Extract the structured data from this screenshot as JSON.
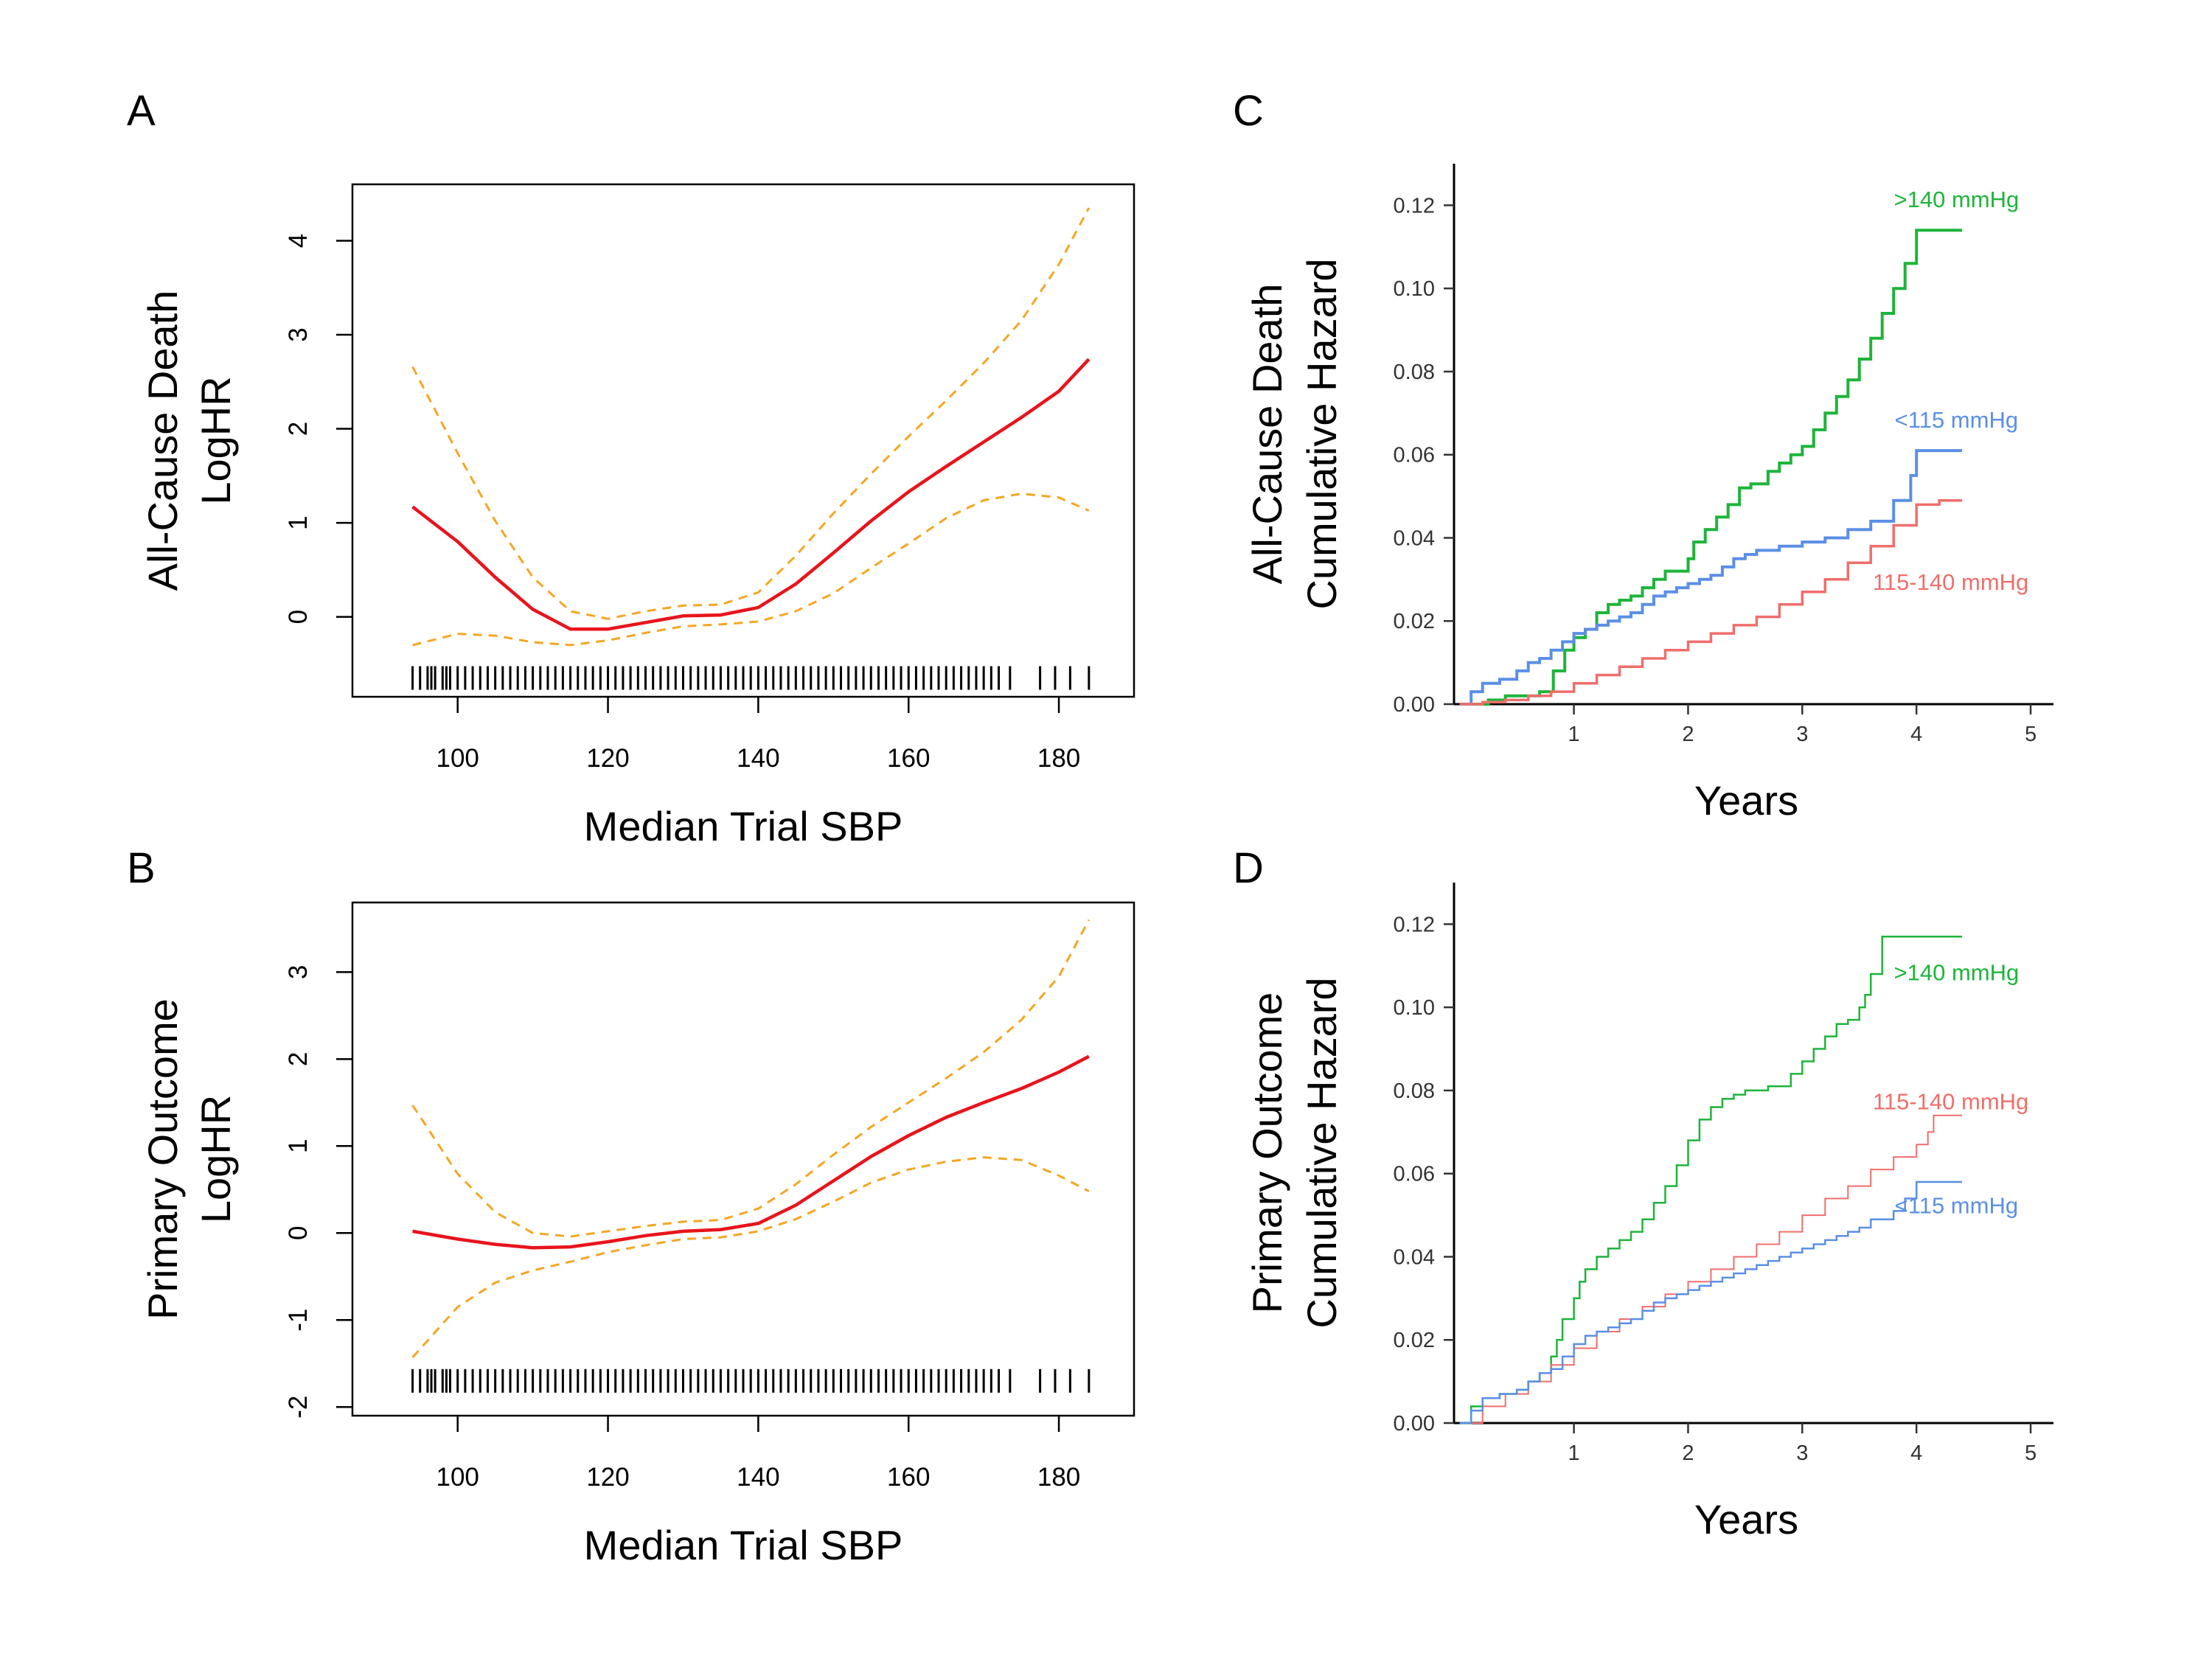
{
  "colors": {
    "fit": "#e8141c",
    "ci": "#f5a623",
    "green": "#1db43a",
    "blue": "#5b8fe6",
    "salmon": "#ef6e6b",
    "rug": "#000000"
  },
  "chart_data": [
    {
      "panel": "A",
      "type": "line",
      "xlabel": "Median Trial SBP",
      "ylabel_lines": [
        "All-Cause Death",
        "LogHR"
      ],
      "xlim": [
        86,
        190
      ],
      "ylim": [
        -0.85,
        4.6
      ],
      "xticks": [
        100,
        120,
        140,
        160,
        180
      ],
      "xtick_labels": [
        "100",
        "120",
        "140",
        "160",
        "180"
      ],
      "yticks": [
        0,
        1,
        2,
        3,
        4
      ],
      "ytick_labels": [
        "0",
        "1",
        "2",
        "3",
        "4"
      ],
      "rug_y": -0.65,
      "series": [
        {
          "role": "fit",
          "x": [
            94,
            100,
            105,
            110,
            115,
            120,
            125,
            130,
            135,
            140,
            145,
            150,
            155,
            160,
            165,
            170,
            175,
            180,
            184
          ],
          "y": [
            1.17,
            0.8,
            0.42,
            0.08,
            -0.13,
            -0.13,
            -0.06,
            0.01,
            0.02,
            0.1,
            0.35,
            0.68,
            1.02,
            1.33,
            1.6,
            1.86,
            2.12,
            2.4,
            2.74
          ]
        },
        {
          "role": "ci-upper",
          "x": [
            94,
            100,
            105,
            110,
            115,
            120,
            125,
            130,
            135,
            140,
            145,
            150,
            155,
            160,
            165,
            170,
            175,
            180,
            184
          ],
          "y": [
            2.66,
            1.74,
            1.02,
            0.42,
            0.06,
            -0.02,
            0.06,
            0.12,
            0.13,
            0.26,
            0.65,
            1.1,
            1.52,
            1.92,
            2.3,
            2.7,
            3.15,
            3.75,
            4.35
          ]
        },
        {
          "role": "ci-lower",
          "x": [
            94,
            100,
            105,
            110,
            115,
            120,
            125,
            130,
            135,
            140,
            145,
            150,
            155,
            160,
            165,
            170,
            175,
            180,
            184
          ],
          "y": [
            -0.3,
            -0.18,
            -0.2,
            -0.27,
            -0.3,
            -0.25,
            -0.17,
            -0.1,
            -0.08,
            -0.05,
            0.06,
            0.25,
            0.52,
            0.78,
            1.05,
            1.24,
            1.31,
            1.27,
            1.13
          ]
        }
      ]
    },
    {
      "panel": "B",
      "type": "line",
      "xlabel": "Median Trial SBP",
      "ylabel_lines": [
        "Primary Outcome",
        "LogHR"
      ],
      "xlim": [
        86,
        190
      ],
      "ylim": [
        -2.1,
        3.8
      ],
      "xticks": [
        100,
        120,
        140,
        160,
        180
      ],
      "xtick_labels": [
        "100",
        "120",
        "140",
        "160",
        "180"
      ],
      "yticks": [
        -2,
        -1,
        0,
        1,
        2,
        3
      ],
      "ytick_labels": [
        "-2",
        "-1",
        "0",
        "1",
        "2",
        "3"
      ],
      "rug_y": -1.7,
      "series": [
        {
          "role": "fit",
          "x": [
            94,
            100,
            105,
            110,
            115,
            120,
            125,
            130,
            135,
            140,
            145,
            150,
            155,
            160,
            165,
            170,
            175,
            180,
            184
          ],
          "y": [
            0.02,
            -0.07,
            -0.13,
            -0.17,
            -0.16,
            -0.1,
            -0.03,
            0.02,
            0.04,
            0.11,
            0.32,
            0.6,
            0.88,
            1.12,
            1.33,
            1.5,
            1.66,
            1.85,
            2.03
          ]
        },
        {
          "role": "ci-upper",
          "x": [
            94,
            100,
            105,
            110,
            115,
            120,
            125,
            130,
            135,
            140,
            145,
            150,
            155,
            160,
            165,
            170,
            175,
            180,
            184
          ],
          "y": [
            1.47,
            0.68,
            0.24,
            0.0,
            -0.04,
            0.02,
            0.08,
            0.13,
            0.15,
            0.28,
            0.56,
            0.9,
            1.22,
            1.5,
            1.78,
            2.08,
            2.45,
            2.95,
            3.6
          ]
        },
        {
          "role": "ci-lower",
          "x": [
            94,
            100,
            105,
            110,
            115,
            120,
            125,
            130,
            135,
            140,
            145,
            150,
            155,
            160,
            165,
            170,
            175,
            180,
            184
          ],
          "y": [
            -1.43,
            -0.85,
            -0.57,
            -0.43,
            -0.33,
            -0.22,
            -0.14,
            -0.07,
            -0.05,
            0.02,
            0.16,
            0.36,
            0.58,
            0.73,
            0.82,
            0.87,
            0.84,
            0.66,
            0.48
          ]
        }
      ]
    },
    {
      "panel": "C",
      "type": "line",
      "step": true,
      "xlabel": "Years",
      "ylabel_lines": [
        "All-Cause Death",
        "Cumulative Hazard"
      ],
      "xlim": [
        -0.05,
        5.2
      ],
      "ylim": [
        0,
        0.13
      ],
      "xticks": [
        1,
        2,
        3,
        4,
        5
      ],
      "xtick_labels": [
        "1",
        "2",
        "3",
        "4",
        "5"
      ],
      "yticks": [
        0,
        0.02,
        0.04,
        0.06,
        0.08,
        0.1,
        0.12
      ],
      "ytick_labels": [
        "0.00",
        "0.02",
        "0.04",
        "0.06",
        "0.08",
        "0.10",
        "0.12"
      ],
      "series": [
        {
          "name": ">140 mmHg",
          "color_key": "green",
          "label_x": 4.35,
          "label_y": 0.1195,
          "x": [
            0,
            0.25,
            0.4,
            0.55,
            0.7,
            0.82,
            0.92,
            1.0,
            1.1,
            1.2,
            1.3,
            1.4,
            1.5,
            1.6,
            1.7,
            1.8,
            1.9,
            2.0,
            2.05,
            2.15,
            2.25,
            2.35,
            2.45,
            2.55,
            2.7,
            2.8,
            2.9,
            3.0,
            3.1,
            3.2,
            3.3,
            3.4,
            3.5,
            3.6,
            3.7,
            3.8,
            3.9,
            4.0,
            4.4
          ],
          "y": [
            0,
            0.001,
            0.002,
            0.002,
            0.003,
            0.008,
            0.013,
            0.016,
            0.018,
            0.022,
            0.024,
            0.025,
            0.026,
            0.028,
            0.03,
            0.032,
            0.032,
            0.035,
            0.039,
            0.042,
            0.045,
            0.048,
            0.052,
            0.053,
            0.056,
            0.058,
            0.06,
            0.062,
            0.066,
            0.07,
            0.074,
            0.078,
            0.083,
            0.088,
            0.094,
            0.1,
            0.106,
            0.114,
            0.114
          ]
        },
        {
          "name": "<115 mmHg",
          "color_key": "blue",
          "label_x": 4.35,
          "label_y": 0.0665,
          "x": [
            0,
            0.1,
            0.2,
            0.35,
            0.5,
            0.6,
            0.7,
            0.8,
            0.9,
            1.0,
            1.1,
            1.2,
            1.3,
            1.4,
            1.5,
            1.6,
            1.7,
            1.8,
            1.9,
            2.0,
            2.1,
            2.2,
            2.3,
            2.4,
            2.5,
            2.6,
            2.8,
            3.0,
            3.2,
            3.4,
            3.6,
            3.8,
            3.95,
            4.0,
            4.4
          ],
          "y": [
            0,
            0.003,
            0.005,
            0.006,
            0.008,
            0.01,
            0.011,
            0.013,
            0.015,
            0.017,
            0.018,
            0.019,
            0.02,
            0.021,
            0.022,
            0.024,
            0.026,
            0.027,
            0.028,
            0.029,
            0.03,
            0.031,
            0.033,
            0.035,
            0.036,
            0.037,
            0.038,
            0.039,
            0.04,
            0.042,
            0.044,
            0.049,
            0.055,
            0.061,
            0.061
          ]
        },
        {
          "name": "115-140 mmHg",
          "color_key": "salmon",
          "label_x": 4.3,
          "label_y": 0.0275,
          "x": [
            0,
            0.2,
            0.4,
            0.6,
            0.8,
            1.0,
            1.2,
            1.4,
            1.6,
            1.8,
            2.0,
            2.2,
            2.4,
            2.6,
            2.8,
            3.0,
            3.2,
            3.4,
            3.6,
            3.8,
            4.0,
            4.2,
            4.4
          ],
          "y": [
            0,
            0.0005,
            0.001,
            0.002,
            0.003,
            0.005,
            0.007,
            0.009,
            0.011,
            0.013,
            0.015,
            0.017,
            0.019,
            0.021,
            0.024,
            0.027,
            0.03,
            0.034,
            0.038,
            0.043,
            0.048,
            0.049,
            0.049
          ]
        }
      ]
    },
    {
      "panel": "D",
      "type": "line",
      "step": true,
      "xlabel": "Years",
      "ylabel_lines": [
        "Primary Outcome",
        "Cumulative Hazard"
      ],
      "xlim": [
        -0.05,
        5.2
      ],
      "ylim": [
        0,
        0.13
      ],
      "xticks": [
        1,
        2,
        3,
        4,
        5
      ],
      "xtick_labels": [
        "1",
        "2",
        "3",
        "4",
        "5"
      ],
      "yticks": [
        0,
        0.02,
        0.04,
        0.06,
        0.08,
        0.1,
        0.12
      ],
      "ytick_labels": [
        "0.00",
        "0.02",
        "0.04",
        "0.06",
        "0.08",
        "0.10",
        "0.12"
      ],
      "series": [
        {
          "name": ">140 mmHg",
          "color_key": "green",
          "label_x": 4.35,
          "label_y": 0.1065,
          "x": [
            0,
            0.1,
            0.2,
            0.35,
            0.5,
            0.6,
            0.7,
            0.8,
            0.85,
            0.9,
            1.0,
            1.05,
            1.1,
            1.2,
            1.3,
            1.4,
            1.5,
            1.6,
            1.7,
            1.8,
            1.9,
            2.0,
            2.1,
            2.2,
            2.3,
            2.4,
            2.5,
            2.7,
            2.9,
            3.0,
            3.1,
            3.2,
            3.3,
            3.4,
            3.5,
            3.55,
            3.6,
            3.7,
            4.4
          ],
          "y": [
            0,
            0.004,
            0.006,
            0.007,
            0.008,
            0.01,
            0.012,
            0.016,
            0.02,
            0.025,
            0.03,
            0.034,
            0.037,
            0.04,
            0.042,
            0.044,
            0.046,
            0.049,
            0.053,
            0.057,
            0.062,
            0.068,
            0.073,
            0.076,
            0.078,
            0.079,
            0.08,
            0.081,
            0.084,
            0.087,
            0.09,
            0.093,
            0.096,
            0.097,
            0.1,
            0.103,
            0.108,
            0.117,
            0.117
          ]
        },
        {
          "name": "115-140 mmHg",
          "color_key": "salmon",
          "label_x": 4.3,
          "label_y": 0.0755,
          "x": [
            0,
            0.2,
            0.4,
            0.6,
            0.8,
            1.0,
            1.2,
            1.4,
            1.6,
            1.8,
            2.0,
            2.2,
            2.4,
            2.6,
            2.8,
            3.0,
            3.2,
            3.4,
            3.6,
            3.8,
            4.0,
            4.1,
            4.15,
            4.4
          ],
          "y": [
            0,
            0.004,
            0.007,
            0.01,
            0.014,
            0.018,
            0.022,
            0.025,
            0.028,
            0.031,
            0.034,
            0.037,
            0.04,
            0.043,
            0.046,
            0.05,
            0.054,
            0.057,
            0.061,
            0.064,
            0.067,
            0.07,
            0.074,
            0.074
          ]
        },
        {
          "name": "<115 mmHg",
          "color_key": "blue",
          "label_x": 4.35,
          "label_y": 0.0505,
          "x": [
            0,
            0.1,
            0.2,
            0.35,
            0.5,
            0.6,
            0.7,
            0.8,
            0.9,
            1.0,
            1.1,
            1.2,
            1.3,
            1.4,
            1.5,
            1.6,
            1.7,
            1.8,
            1.9,
            2.0,
            2.1,
            2.2,
            2.3,
            2.4,
            2.5,
            2.6,
            2.7,
            2.8,
            2.9,
            3.0,
            3.1,
            3.2,
            3.3,
            3.4,
            3.5,
            3.6,
            3.8,
            3.9,
            4.0,
            4.4
          ],
          "y": [
            0,
            0.003,
            0.006,
            0.007,
            0.008,
            0.01,
            0.012,
            0.013,
            0.016,
            0.019,
            0.021,
            0.022,
            0.023,
            0.024,
            0.025,
            0.027,
            0.029,
            0.03,
            0.031,
            0.032,
            0.033,
            0.034,
            0.035,
            0.036,
            0.037,
            0.038,
            0.039,
            0.04,
            0.041,
            0.042,
            0.043,
            0.044,
            0.045,
            0.046,
            0.047,
            0.049,
            0.051,
            0.054,
            0.058,
            0.058
          ]
        }
      ]
    }
  ]
}
